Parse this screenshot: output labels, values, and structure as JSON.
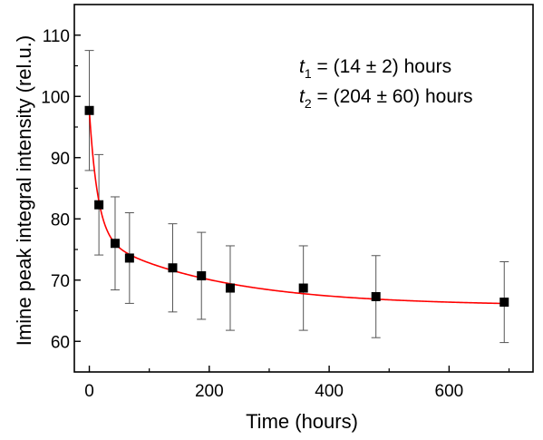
{
  "chart_data": {
    "type": "scatter",
    "xlabel": "Time (hours)",
    "ylabel": "Imine peak integral intensity (rel.u.)",
    "xlim": [
      -25,
      740
    ],
    "ylim": [
      55,
      115
    ],
    "xticks": [
      0,
      200,
      400,
      600
    ],
    "yticks": [
      60,
      70,
      80,
      90,
      100,
      110
    ],
    "grid": false,
    "series": [
      {
        "color": "#000000",
        "marker": "square",
        "points": [
          {
            "x": 0,
            "y": 97.7,
            "yerr": 9.8
          },
          {
            "x": 16,
            "y": 82.3,
            "yerr": 8.2
          },
          {
            "x": 43,
            "y": 76.0,
            "yerr": 7.6
          },
          {
            "x": 67,
            "y": 73.6,
            "yerr": 7.4
          },
          {
            "x": 139,
            "y": 72.0,
            "yerr": 7.2
          },
          {
            "x": 187,
            "y": 70.7,
            "yerr": 7.1
          },
          {
            "x": 235,
            "y": 68.7,
            "yerr": 6.9
          },
          {
            "x": 357,
            "y": 68.7,
            "yerr": 6.9
          },
          {
            "x": 478,
            "y": 67.3,
            "yerr": 6.7
          },
          {
            "x": 692,
            "y": 66.4,
            "yerr": 6.6
          }
        ]
      }
    ],
    "fit": {
      "color": "#ff0000",
      "model": "biexponential",
      "y0": 65.8,
      "a1": 20.5,
      "t1": 14,
      "a2": 11.4,
      "t2": 204,
      "x_range": [
        0,
        692
      ]
    },
    "annotations": [
      {
        "var": "t",
        "sub": "1",
        "text": " = (14 ± 2) hours"
      },
      {
        "var": "t",
        "sub": "2",
        "text": " = (204 ± 60) hours"
      }
    ]
  }
}
